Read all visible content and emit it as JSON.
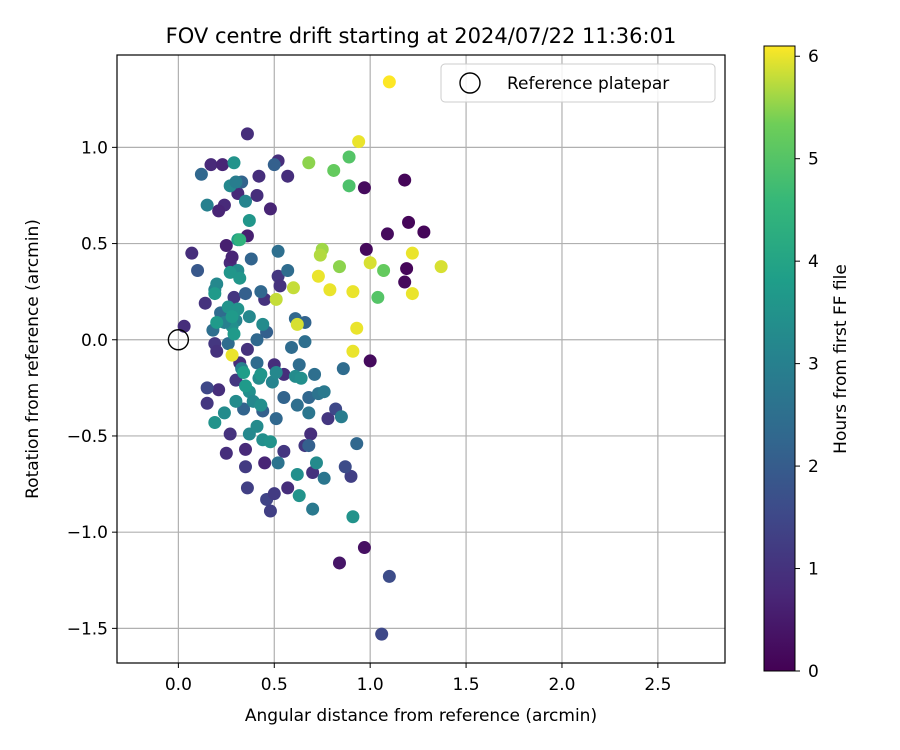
{
  "chart_data": {
    "type": "scatter",
    "title": "FOV centre drift starting at 2024/07/22 11:36:01",
    "xlabel": "Angular distance from reference (arcmin)",
    "ylabel": "Rotation from reference (arcmin)",
    "xlim": [
      -0.32,
      2.85
    ],
    "ylim": [
      -1.68,
      1.48
    ],
    "xticks": [
      0.0,
      0.5,
      1.0,
      1.5,
      2.0,
      2.5
    ],
    "xtick_labels": [
      "0.0",
      "0.5",
      "1.0",
      "1.5",
      "2.0",
      "2.5"
    ],
    "yticks": [
      -1.5,
      -1.0,
      -0.5,
      0.0,
      0.5,
      1.0
    ],
    "ytick_labels": [
      "−1.5",
      "−1.0",
      "−0.5",
      "0.0",
      "0.5",
      "1.0"
    ],
    "grid": true,
    "legend": {
      "position": "top-right",
      "entries": [
        {
          "label": "Reference platepar",
          "marker": "open-circle"
        }
      ]
    },
    "reference_point": {
      "x": 0.0,
      "y": 0.0
    },
    "colorbar": {
      "label": "Hours from first FF file",
      "colormap": "viridis",
      "range": [
        0,
        6.1
      ],
      "ticks": [
        0,
        1,
        2,
        3,
        4,
        5,
        6
      ],
      "tick_labels": [
        "0",
        "1",
        "2",
        "3",
        "4",
        "5",
        "6"
      ]
    },
    "points": [
      {
        "x": 1.18,
        "y": 0.83,
        "h": 0.1
      },
      {
        "x": 0.97,
        "y": 0.79,
        "h": 0.2
      },
      {
        "x": 1.2,
        "y": 0.61,
        "h": 0.1
      },
      {
        "x": 1.28,
        "y": 0.56,
        "h": 0.1
      },
      {
        "x": 1.09,
        "y": 0.55,
        "h": 0.2
      },
      {
        "x": 0.98,
        "y": 0.47,
        "h": 0.15
      },
      {
        "x": 1.19,
        "y": 0.37,
        "h": 0.1
      },
      {
        "x": 1.18,
        "y": 0.3,
        "h": 0.15
      },
      {
        "x": 1.0,
        "y": -0.11,
        "h": 0.2
      },
      {
        "x": 0.97,
        "y": -1.08,
        "h": 0.3
      },
      {
        "x": 0.84,
        "y": -1.16,
        "h": 0.4
      },
      {
        "x": 1.1,
        "y": -1.23,
        "h": 1.6
      },
      {
        "x": 1.06,
        "y": -1.53,
        "h": 1.5
      },
      {
        "x": 0.36,
        "y": 1.07,
        "h": 0.9
      },
      {
        "x": 0.52,
        "y": 0.93,
        "h": 0.9
      },
      {
        "x": 0.17,
        "y": 0.91,
        "h": 0.8
      },
      {
        "x": 0.23,
        "y": 0.91,
        "h": 0.7
      },
      {
        "x": 0.42,
        "y": 0.85,
        "h": 0.9
      },
      {
        "x": 0.57,
        "y": 0.85,
        "h": 0.9
      },
      {
        "x": 0.31,
        "y": 0.76,
        "h": 0.8
      },
      {
        "x": 0.41,
        "y": 0.75,
        "h": 0.9
      },
      {
        "x": 0.24,
        "y": 0.7,
        "h": 0.8
      },
      {
        "x": 0.48,
        "y": 0.68,
        "h": 0.7
      },
      {
        "x": 0.21,
        "y": 0.67,
        "h": 0.7
      },
      {
        "x": 0.25,
        "y": 0.49,
        "h": 0.6
      },
      {
        "x": 0.36,
        "y": 0.54,
        "h": 0.6
      },
      {
        "x": 0.07,
        "y": 0.45,
        "h": 0.9
      },
      {
        "x": 0.27,
        "y": 0.4,
        "h": 0.8
      },
      {
        "x": 0.28,
        "y": 0.43,
        "h": 0.7
      },
      {
        "x": 0.52,
        "y": 0.33,
        "h": 1.1
      },
      {
        "x": 0.53,
        "y": 0.28,
        "h": 1.0
      },
      {
        "x": 0.45,
        "y": 0.21,
        "h": 1.0
      },
      {
        "x": 0.29,
        "y": 0.22,
        "h": 1.1
      },
      {
        "x": 0.14,
        "y": 0.19,
        "h": 1.0
      },
      {
        "x": 0.03,
        "y": 0.07,
        "h": 0.9
      },
      {
        "x": 0.19,
        "y": -0.02,
        "h": 1.1
      },
      {
        "x": 0.2,
        "y": -0.06,
        "h": 1.0
      },
      {
        "x": 0.21,
        "y": -0.26,
        "h": 0.9
      },
      {
        "x": 0.15,
        "y": -0.33,
        "h": 1.1
      },
      {
        "x": 0.32,
        "y": -0.12,
        "h": 0.9
      },
      {
        "x": 0.36,
        "y": -0.05,
        "h": 1.0
      },
      {
        "x": 0.5,
        "y": -0.13,
        "h": 0.9
      },
      {
        "x": 0.55,
        "y": -0.18,
        "h": 0.9
      },
      {
        "x": 0.3,
        "y": -0.21,
        "h": 1.1
      },
      {
        "x": 0.27,
        "y": -0.49,
        "h": 1.0
      },
      {
        "x": 0.25,
        "y": -0.59,
        "h": 0.9
      },
      {
        "x": 0.35,
        "y": -0.57,
        "h": 0.8
      },
      {
        "x": 0.45,
        "y": -0.64,
        "h": 0.7
      },
      {
        "x": 0.35,
        "y": -0.66,
        "h": 1.2
      },
      {
        "x": 0.36,
        "y": -0.77,
        "h": 1.3
      },
      {
        "x": 0.46,
        "y": -0.83,
        "h": 1.4
      },
      {
        "x": 0.5,
        "y": -0.8,
        "h": 1.2
      },
      {
        "x": 0.48,
        "y": -0.89,
        "h": 1.3
      },
      {
        "x": 0.55,
        "y": -0.58,
        "h": 1.1
      },
      {
        "x": 0.69,
        "y": -0.49,
        "h": 0.9
      },
      {
        "x": 0.66,
        "y": -0.55,
        "h": 1.1
      },
      {
        "x": 0.7,
        "y": -0.69,
        "h": 1.0
      },
      {
        "x": 0.57,
        "y": -0.77,
        "h": 0.9
      },
      {
        "x": 0.78,
        "y": -0.41,
        "h": 1.1
      },
      {
        "x": 0.9,
        "y": -0.71,
        "h": 1.3
      },
      {
        "x": 0.87,
        "y": -0.66,
        "h": 1.6
      },
      {
        "x": 0.82,
        "y": -0.36,
        "h": 1.5
      },
      {
        "x": 0.15,
        "y": -0.25,
        "h": 1.5
      },
      {
        "x": 0.1,
        "y": 0.36,
        "h": 1.9
      },
      {
        "x": 0.12,
        "y": 0.86,
        "h": 2.3
      },
      {
        "x": 0.33,
        "y": 0.82,
        "h": 2.2
      },
      {
        "x": 0.5,
        "y": 0.91,
        "h": 2.1
      },
      {
        "x": 0.38,
        "y": 0.42,
        "h": 2.2
      },
      {
        "x": 0.52,
        "y": 0.46,
        "h": 2.5
      },
      {
        "x": 0.57,
        "y": 0.36,
        "h": 2.4
      },
      {
        "x": 0.35,
        "y": 0.24,
        "h": 2.1
      },
      {
        "x": 0.43,
        "y": 0.25,
        "h": 2.3
      },
      {
        "x": 0.61,
        "y": 0.11,
        "h": 2.3
      },
      {
        "x": 0.66,
        "y": 0.09,
        "h": 2.2
      },
      {
        "x": 0.22,
        "y": 0.14,
        "h": 2.4
      },
      {
        "x": 0.18,
        "y": 0.05,
        "h": 2.5
      },
      {
        "x": 0.26,
        "y": -0.02,
        "h": 2.4
      },
      {
        "x": 0.41,
        "y": 0.0,
        "h": 2.3
      },
      {
        "x": 0.46,
        "y": 0.04,
        "h": 2.1
      },
      {
        "x": 0.59,
        "y": -0.04,
        "h": 2.4
      },
      {
        "x": 0.66,
        "y": -0.01,
        "h": 2.5
      },
      {
        "x": 0.63,
        "y": -0.13,
        "h": 2.4
      },
      {
        "x": 0.41,
        "y": -0.12,
        "h": 2.4
      },
      {
        "x": 0.34,
        "y": -0.36,
        "h": 2.2
      },
      {
        "x": 0.44,
        "y": -0.37,
        "h": 2.1
      },
      {
        "x": 0.51,
        "y": -0.41,
        "h": 2.3
      },
      {
        "x": 0.55,
        "y": -0.3,
        "h": 2.2
      },
      {
        "x": 0.62,
        "y": -0.34,
        "h": 2.5
      },
      {
        "x": 0.68,
        "y": -0.3,
        "h": 2.3
      },
      {
        "x": 0.71,
        "y": -0.18,
        "h": 2.5
      },
      {
        "x": 0.73,
        "y": -0.28,
        "h": 2.6
      },
      {
        "x": 0.86,
        "y": -0.15,
        "h": 2.4
      },
      {
        "x": 0.93,
        "y": -0.54,
        "h": 2.3
      },
      {
        "x": 0.68,
        "y": -0.55,
        "h": 2.1
      },
      {
        "x": 0.52,
        "y": -0.64,
        "h": 2.6
      },
      {
        "x": 0.76,
        "y": -0.72,
        "h": 2.7
      },
      {
        "x": 0.7,
        "y": -0.88,
        "h": 2.8
      },
      {
        "x": 0.85,
        "y": -0.4,
        "h": 2.9
      },
      {
        "x": 0.68,
        "y": -0.38,
        "h": 2.7
      },
      {
        "x": 0.76,
        "y": -0.27,
        "h": 2.8
      },
      {
        "x": 0.15,
        "y": 0.7,
        "h": 3.0
      },
      {
        "x": 0.35,
        "y": 0.72,
        "h": 3.1
      },
      {
        "x": 0.27,
        "y": 0.8,
        "h": 3.2
      },
      {
        "x": 0.3,
        "y": 0.82,
        "h": 2.9
      },
      {
        "x": 0.19,
        "y": 0.26,
        "h": 3.1
      },
      {
        "x": 0.2,
        "y": 0.29,
        "h": 3.2
      },
      {
        "x": 0.31,
        "y": 0.36,
        "h": 3.3
      },
      {
        "x": 0.3,
        "y": 0.1,
        "h": 3.1
      },
      {
        "x": 0.37,
        "y": 0.12,
        "h": 3.2
      },
      {
        "x": 0.44,
        "y": 0.08,
        "h": 3.3
      },
      {
        "x": 0.28,
        "y": 0.07,
        "h": 3.4
      },
      {
        "x": 0.24,
        "y": 0.09,
        "h": 3.0
      },
      {
        "x": 0.42,
        "y": -0.2,
        "h": 3.3
      },
      {
        "x": 0.49,
        "y": -0.22,
        "h": 3.1
      },
      {
        "x": 0.37,
        "y": -0.27,
        "h": 3.4
      },
      {
        "x": 0.3,
        "y": -0.32,
        "h": 3.3
      },
      {
        "x": 0.39,
        "y": -0.32,
        "h": 3.2
      },
      {
        "x": 0.43,
        "y": -0.34,
        "h": 3.4
      },
      {
        "x": 0.33,
        "y": -0.15,
        "h": 3.0
      },
      {
        "x": 0.24,
        "y": -0.38,
        "h": 3.3
      },
      {
        "x": 0.19,
        "y": -0.43,
        "h": 3.5
      },
      {
        "x": 0.37,
        "y": -0.49,
        "h": 3.2
      },
      {
        "x": 0.41,
        "y": -0.45,
        "h": 3.3
      },
      {
        "x": 0.44,
        "y": -0.52,
        "h": 3.4
      },
      {
        "x": 0.48,
        "y": -0.53,
        "h": 3.5
      },
      {
        "x": 0.62,
        "y": -0.7,
        "h": 3.4
      },
      {
        "x": 0.63,
        "y": -0.81,
        "h": 3.5
      },
      {
        "x": 0.72,
        "y": -0.64,
        "h": 3.3
      },
      {
        "x": 0.91,
        "y": -0.92,
        "h": 3.5
      },
      {
        "x": 0.61,
        "y": -0.19,
        "h": 3.3
      },
      {
        "x": 0.64,
        "y": -0.2,
        "h": 3.4
      },
      {
        "x": 0.51,
        "y": -0.17,
        "h": 3.2
      },
      {
        "x": 0.29,
        "y": 0.92,
        "h": 3.5
      },
      {
        "x": 0.27,
        "y": 0.35,
        "h": 3.6
      },
      {
        "x": 0.19,
        "y": 0.24,
        "h": 3.7
      },
      {
        "x": 0.26,
        "y": 0.17,
        "h": 3.5
      },
      {
        "x": 0.31,
        "y": 0.52,
        "h": 3.8
      },
      {
        "x": 0.37,
        "y": 0.62,
        "h": 3.6
      },
      {
        "x": 0.32,
        "y": 0.32,
        "h": 3.6
      },
      {
        "x": 0.29,
        "y": 0.03,
        "h": 3.7
      },
      {
        "x": 0.35,
        "y": -0.24,
        "h": 3.7
      },
      {
        "x": 0.34,
        "y": -0.17,
        "h": 3.8
      },
      {
        "x": 0.43,
        "y": -0.18,
        "h": 3.6
      },
      {
        "x": 0.31,
        "y": 0.16,
        "h": 3.5
      },
      {
        "x": 0.28,
        "y": 0.12,
        "h": 3.7
      },
      {
        "x": 0.2,
        "y": 0.09,
        "h": 3.7
      },
      {
        "x": 0.32,
        "y": 0.52,
        "h": 4.4
      },
      {
        "x": 0.6,
        "y": 0.27,
        "h": 5.8
      },
      {
        "x": 0.51,
        "y": 0.21,
        "h": 5.8
      },
      {
        "x": 0.62,
        "y": 0.08,
        "h": 5.9
      },
      {
        "x": 0.28,
        "y": -0.08,
        "h": 6.0
      },
      {
        "x": 0.68,
        "y": 0.92,
        "h": 5.5
      },
      {
        "x": 0.81,
        "y": 0.88,
        "h": 5.2
      },
      {
        "x": 0.89,
        "y": 0.95,
        "h": 5.0
      },
      {
        "x": 0.89,
        "y": 0.8,
        "h": 4.9
      },
      {
        "x": 0.94,
        "y": 1.03,
        "h": 6.0
      },
      {
        "x": 1.1,
        "y": 1.34,
        "h": 6.1
      },
      {
        "x": 0.75,
        "y": 0.47,
        "h": 5.6
      },
      {
        "x": 0.74,
        "y": 0.44,
        "h": 5.7
      },
      {
        "x": 0.73,
        "y": 0.33,
        "h": 6.0
      },
      {
        "x": 0.79,
        "y": 0.26,
        "h": 6.0
      },
      {
        "x": 0.84,
        "y": 0.38,
        "h": 5.5
      },
      {
        "x": 0.91,
        "y": 0.25,
        "h": 6.0
      },
      {
        "x": 0.93,
        "y": 0.06,
        "h": 6.0
      },
      {
        "x": 0.91,
        "y": -0.06,
        "h": 6.0
      },
      {
        "x": 1.0,
        "y": 0.4,
        "h": 5.9
      },
      {
        "x": 1.07,
        "y": 0.36,
        "h": 5.2
      },
      {
        "x": 1.04,
        "y": 0.22,
        "h": 5.0
      },
      {
        "x": 1.22,
        "y": 0.45,
        "h": 6.0
      },
      {
        "x": 1.22,
        "y": 0.24,
        "h": 6.0
      },
      {
        "x": 1.37,
        "y": 0.38,
        "h": 5.9
      }
    ]
  }
}
